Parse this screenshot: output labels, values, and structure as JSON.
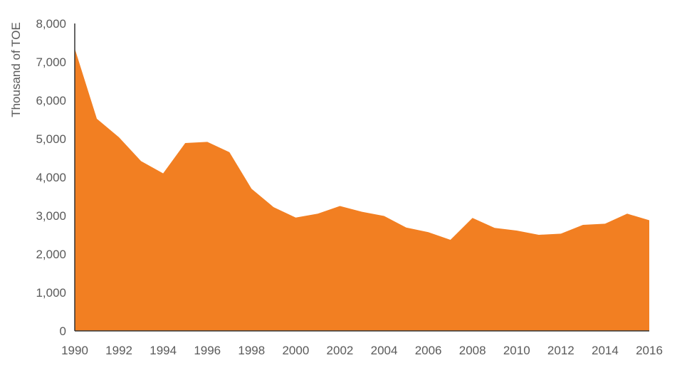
{
  "chart_data": {
    "type": "area",
    "title": "",
    "xlabel": "",
    "ylabel": "Thousand of TOE",
    "x": [
      1990,
      1991,
      1992,
      1993,
      1994,
      1995,
      1996,
      1997,
      1998,
      1999,
      2000,
      2001,
      2002,
      2003,
      2004,
      2005,
      2006,
      2007,
      2008,
      2009,
      2010,
      2011,
      2012,
      2013,
      2014,
      2015,
      2016
    ],
    "values": [
      7350,
      5520,
      5040,
      4420,
      4100,
      4890,
      4920,
      4650,
      3700,
      3220,
      2950,
      3050,
      3250,
      3100,
      2990,
      2690,
      2570,
      2370,
      2940,
      2680,
      2610,
      2500,
      2530,
      2760,
      2790,
      3050,
      2880
    ],
    "xlim": [
      1990,
      2016
    ],
    "ylim": [
      0,
      8000
    ],
    "x_ticks": [
      "1990",
      "1992",
      "1994",
      "1996",
      "1998",
      "2000",
      "2002",
      "2004",
      "2006",
      "2008",
      "2010",
      "2012",
      "2014",
      "2016"
    ],
    "y_ticks": [
      "0",
      "1,000",
      "2,000",
      "3,000",
      "4,000",
      "5,000",
      "6,000",
      "7,000",
      "8,000"
    ],
    "grid": false,
    "legend": "none",
    "colors": {
      "area": "#f27f22",
      "axis": "#333333",
      "text": "#5a5a5a"
    }
  }
}
